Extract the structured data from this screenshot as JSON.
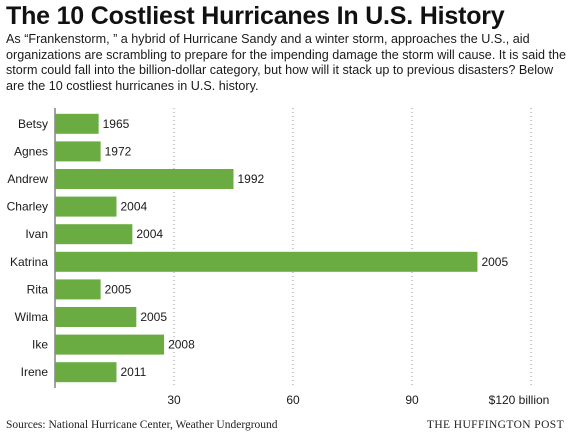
{
  "header": {
    "title": "The 10 Costliest Hurricanes In U.S. History",
    "intro": "As “Frankenstorm, ” a hybrid of Hurricane Sandy and a winter storm, approaches the U.S., aid organizations are scrambling to prepare for the impending damage the storm will cause. It is said the storm could fall into the billion-dollar category, but how will it stack up to previous disasters? Below are the 10 costliest hurricanes in U.S. history."
  },
  "chart_data": {
    "type": "bar",
    "orientation": "horizontal",
    "categories": [
      "Betsy",
      "Agnes",
      "Andrew",
      "Charley",
      "Ivan",
      "Katrina",
      "Rita",
      "Wilma",
      "Ike",
      "Irene"
    ],
    "values": [
      11,
      11.5,
      45,
      15.5,
      19.5,
      106.5,
      11.5,
      20.5,
      27.5,
      15.5
    ],
    "bar_labels": [
      "1965",
      "1972",
      "1992",
      "2004",
      "2004",
      "2005",
      "2005",
      "2005",
      "2008",
      "2011"
    ],
    "xlim": [
      0,
      120
    ],
    "x_ticks": [
      30,
      60,
      90,
      120
    ],
    "x_tick_labels": [
      "30",
      "60",
      "90",
      "$120 billion"
    ],
    "grid": "vertical dotted",
    "bar_color": "#6aab42"
  },
  "footer": {
    "source": "Sources: National Hurricane Center, Weather Underground",
    "credit": "THE HUFFINGTON POST"
  }
}
